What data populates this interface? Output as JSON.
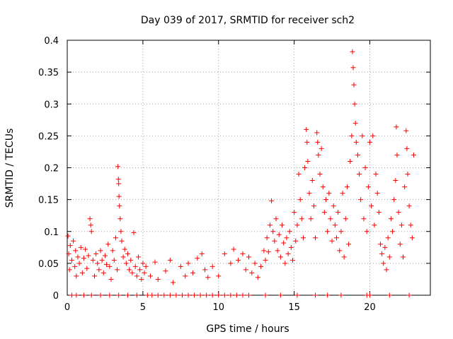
{
  "chart_data": {
    "type": "scatter",
    "title": "Day 039 of 2017, SRMTID for receiver sch2",
    "xlabel": "GPS time / hours",
    "ylabel": "SRMTID / TECUs",
    "xlim": [
      0,
      24
    ],
    "ylim": [
      0,
      0.4
    ],
    "grid": true,
    "marker": "+",
    "color": "#ff0000",
    "x_ticks": [
      {
        "value": 0,
        "label": "0"
      },
      {
        "value": 5,
        "label": "5"
      },
      {
        "value": 10,
        "label": "10"
      },
      {
        "value": 15,
        "label": "15"
      },
      {
        "value": 20,
        "label": "20"
      }
    ],
    "y_ticks": [
      {
        "value": 0,
        "label": "0"
      },
      {
        "value": 0.05,
        "label": "0.05"
      },
      {
        "value": 0.1,
        "label": "0.1"
      },
      {
        "value": 0.15,
        "label": "0.15"
      },
      {
        "value": 0.2,
        "label": "0.2"
      },
      {
        "value": 0.25,
        "label": "0.25"
      },
      {
        "value": 0.3,
        "label": "0.3"
      },
      {
        "value": 0.35,
        "label": "0.35"
      },
      {
        "value": 0.4,
        "label": "0.4"
      }
    ],
    "series": [
      {
        "name": "SRMTID",
        "points": [
          [
            0.05,
            0.093
          ],
          [
            0.1,
            0.065
          ],
          [
            0.15,
            0.04
          ],
          [
            0.2,
            0.078
          ],
          [
            0.3,
            0.055
          ],
          [
            0.4,
            0.085
          ],
          [
            0.5,
            0.045
          ],
          [
            0.55,
            0.07
          ],
          [
            0.6,
            0.03
          ],
          [
            0.7,
            0.06
          ],
          [
            0.8,
            0.05
          ],
          [
            0.9,
            0.075
          ],
          [
            1.0,
            0.035
          ],
          [
            1.1,
            0.058
          ],
          [
            1.2,
            0.072
          ],
          [
            1.3,
            0.042
          ],
          [
            1.4,
            0.062
          ],
          [
            1.5,
            0.12
          ],
          [
            1.55,
            0.11
          ],
          [
            1.6,
            0.1
          ],
          [
            1.7,
            0.055
          ],
          [
            1.8,
            0.03
          ],
          [
            1.9,
            0.065
          ],
          [
            2.0,
            0.05
          ],
          [
            2.1,
            0.04
          ],
          [
            2.2,
            0.07
          ],
          [
            2.3,
            0.055
          ],
          [
            2.4,
            0.035
          ],
          [
            2.5,
            0.062
          ],
          [
            2.6,
            0.048
          ],
          [
            2.7,
            0.08
          ],
          [
            2.8,
            0.045
          ],
          [
            2.9,
            0.025
          ],
          [
            3.0,
            0.07
          ],
          [
            3.1,
            0.055
          ],
          [
            3.2,
            0.09
          ],
          [
            3.3,
            0.04
          ],
          [
            3.35,
            0.202
          ],
          [
            3.38,
            0.182
          ],
          [
            3.4,
            0.175
          ],
          [
            3.42,
            0.155
          ],
          [
            3.45,
            0.14
          ],
          [
            3.5,
            0.12
          ],
          [
            3.55,
            0.1
          ],
          [
            3.6,
            0.085
          ],
          [
            3.7,
            0.06
          ],
          [
            3.8,
            0.072
          ],
          [
            3.9,
            0.05
          ],
          [
            4.0,
            0.065
          ],
          [
            4.1,
            0.04
          ],
          [
            4.2,
            0.055
          ],
          [
            4.3,
            0.035
          ],
          [
            4.4,
            0.098
          ],
          [
            4.5,
            0.045
          ],
          [
            4.6,
            0.03
          ],
          [
            4.7,
            0.06
          ],
          [
            4.8,
            0.04
          ],
          [
            4.9,
            0.025
          ],
          [
            5.0,
            0.05
          ],
          [
            5.1,
            0.035
          ],
          [
            5.2,
            0.045
          ],
          [
            5.5,
            0.03
          ],
          [
            5.8,
            0.052
          ],
          [
            6.0,
            0.025
          ],
          [
            6.5,
            0.038
          ],
          [
            6.8,
            0.055
          ],
          [
            7.0,
            0.02
          ],
          [
            7.5,
            0.045
          ],
          [
            7.8,
            0.03
          ],
          [
            8.0,
            0.05
          ],
          [
            8.3,
            0.035
          ],
          [
            8.6,
            0.058
          ],
          [
            8.9,
            0.065
          ],
          [
            9.1,
            0.04
          ],
          [
            9.3,
            0.028
          ],
          [
            9.6,
            0.045
          ],
          [
            10.0,
            0.03
          ],
          [
            10.4,
            0.065
          ],
          [
            10.8,
            0.05
          ],
          [
            11.0,
            0.072
          ],
          [
            11.3,
            0.055
          ],
          [
            11.6,
            0.065
          ],
          [
            11.8,
            0.04
          ],
          [
            12.0,
            0.06
          ],
          [
            12.2,
            0.035
          ],
          [
            12.4,
            0.05
          ],
          [
            12.6,
            0.028
          ],
          [
            12.8,
            0.045
          ],
          [
            13.0,
            0.07
          ],
          [
            13.1,
            0.055
          ],
          [
            13.2,
            0.09
          ],
          [
            13.3,
            0.068
          ],
          [
            13.4,
            0.11
          ],
          [
            13.5,
            0.148
          ],
          [
            13.6,
            0.1
          ],
          [
            13.7,
            0.085
          ],
          [
            13.8,
            0.12
          ],
          [
            13.9,
            0.07
          ],
          [
            14.0,
            0.095
          ],
          [
            14.1,
            0.06
          ],
          [
            14.2,
            0.11
          ],
          [
            14.3,
            0.082
          ],
          [
            14.4,
            0.05
          ],
          [
            14.5,
            0.09
          ],
          [
            14.6,
            0.065
          ],
          [
            14.7,
            0.1
          ],
          [
            14.8,
            0.075
          ],
          [
            14.9,
            0.055
          ],
          [
            15.0,
            0.13
          ],
          [
            15.1,
            0.085
          ],
          [
            15.2,
            0.11
          ],
          [
            15.3,
            0.19
          ],
          [
            15.4,
            0.15
          ],
          [
            15.5,
            0.12
          ],
          [
            15.6,
            0.09
          ],
          [
            15.7,
            0.2
          ],
          [
            15.8,
            0.26
          ],
          [
            15.85,
            0.24
          ],
          [
            15.9,
            0.21
          ],
          [
            16.0,
            0.16
          ],
          [
            16.1,
            0.12
          ],
          [
            16.2,
            0.18
          ],
          [
            16.3,
            0.14
          ],
          [
            16.4,
            0.09
          ],
          [
            16.5,
            0.255
          ],
          [
            16.55,
            0.24
          ],
          [
            16.6,
            0.22
          ],
          [
            16.7,
            0.19
          ],
          [
            16.8,
            0.23
          ],
          [
            16.9,
            0.17
          ],
          [
            17.0,
            0.13
          ],
          [
            17.1,
            0.15
          ],
          [
            17.2,
            0.1
          ],
          [
            17.3,
            0.16
          ],
          [
            17.4,
            0.12
          ],
          [
            17.5,
            0.085
          ],
          [
            17.6,
            0.14
          ],
          [
            17.7,
            0.11
          ],
          [
            17.8,
            0.09
          ],
          [
            17.9,
            0.13
          ],
          [
            18.0,
            0.07
          ],
          [
            18.1,
            0.1
          ],
          [
            18.2,
            0.16
          ],
          [
            18.3,
            0.06
          ],
          [
            18.4,
            0.12
          ],
          [
            18.5,
            0.17
          ],
          [
            18.6,
            0.08
          ],
          [
            18.7,
            0.21
          ],
          [
            18.8,
            0.25
          ],
          [
            18.85,
            0.382
          ],
          [
            18.9,
            0.357
          ],
          [
            18.95,
            0.33
          ],
          [
            19.0,
            0.3
          ],
          [
            19.05,
            0.27
          ],
          [
            19.1,
            0.24
          ],
          [
            19.2,
            0.22
          ],
          [
            19.3,
            0.19
          ],
          [
            19.4,
            0.15
          ],
          [
            19.5,
            0.25
          ],
          [
            19.6,
            0.12
          ],
          [
            19.7,
            0.2
          ],
          [
            19.8,
            0.1
          ],
          [
            19.9,
            0.17
          ],
          [
            20.0,
            0.24
          ],
          [
            20.1,
            0.14
          ],
          [
            20.2,
            0.25
          ],
          [
            20.3,
            0.11
          ],
          [
            20.4,
            0.19
          ],
          [
            20.5,
            0.16
          ],
          [
            20.6,
            0.13
          ],
          [
            20.7,
            0.08
          ],
          [
            20.8,
            0.065
          ],
          [
            20.9,
            0.05
          ],
          [
            21.0,
            0.075
          ],
          [
            21.1,
            0.04
          ],
          [
            21.2,
            0.09
          ],
          [
            21.3,
            0.06
          ],
          [
            21.4,
            0.12
          ],
          [
            21.5,
            0.1
          ],
          [
            21.6,
            0.15
          ],
          [
            21.7,
            0.18
          ],
          [
            21.75,
            0.264
          ],
          [
            21.8,
            0.22
          ],
          [
            21.9,
            0.13
          ],
          [
            22.0,
            0.08
          ],
          [
            22.1,
            0.11
          ],
          [
            22.2,
            0.06
          ],
          [
            22.3,
            0.17
          ],
          [
            22.4,
            0.258
          ],
          [
            22.45,
            0.23
          ],
          [
            22.5,
            0.19
          ],
          [
            22.6,
            0.14
          ],
          [
            22.7,
            0.11
          ],
          [
            22.8,
            0.09
          ],
          [
            22.9,
            0.22
          ],
          [
            0.3,
            0.0
          ],
          [
            0.6,
            0.0
          ],
          [
            1.1,
            0.0
          ],
          [
            1.6,
            0.0
          ],
          [
            2.2,
            0.0
          ],
          [
            2.8,
            0.0
          ],
          [
            3.4,
            0.0
          ],
          [
            4.0,
            0.0
          ],
          [
            4.6,
            0.0
          ],
          [
            5.3,
            0.0
          ],
          [
            5.6,
            0.0
          ],
          [
            6.0,
            0.0
          ],
          [
            6.4,
            0.0
          ],
          [
            6.8,
            0.0
          ],
          [
            7.2,
            0.0
          ],
          [
            7.6,
            0.0
          ],
          [
            8.0,
            0.0
          ],
          [
            8.4,
            0.0
          ],
          [
            8.8,
            0.0
          ],
          [
            9.2,
            0.0
          ],
          [
            9.6,
            0.0
          ],
          [
            10.0,
            0.0
          ],
          [
            10.4,
            0.0
          ],
          [
            10.8,
            0.0
          ],
          [
            11.2,
            0.0
          ],
          [
            11.6,
            0.0
          ],
          [
            12.0,
            0.0
          ],
          [
            13.1,
            0.0
          ],
          [
            14.1,
            0.0
          ],
          [
            15.2,
            0.0
          ],
          [
            16.4,
            0.0
          ],
          [
            17.2,
            0.0
          ],
          [
            18.1,
            0.0
          ],
          [
            19.8,
            0.0
          ],
          [
            20.0,
            0.0
          ],
          [
            21.3,
            0.0
          ],
          [
            22.6,
            0.0
          ]
        ]
      }
    ]
  }
}
